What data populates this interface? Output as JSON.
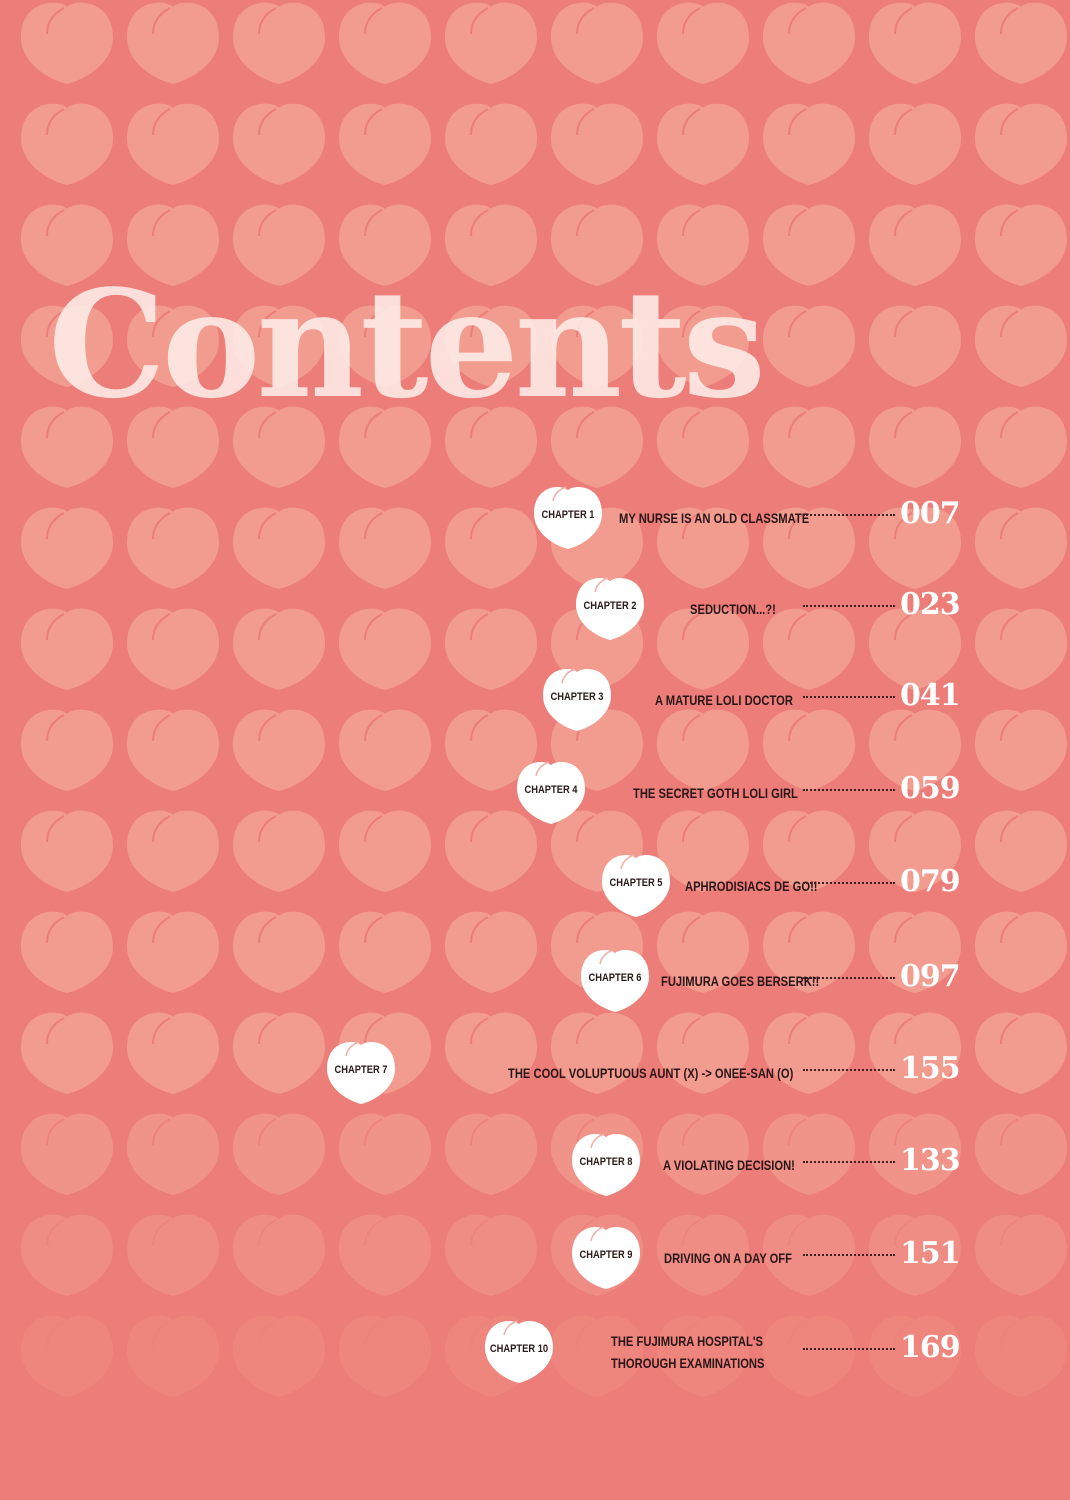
{
  "title": "Contents",
  "colors": {
    "background": "#ec7d78",
    "peach": "#f29b8f",
    "badge": "#ffffff",
    "text": "#2a1518"
  },
  "chapters": [
    {
      "label": "CHAPTER 1",
      "title": "MY NURSE IS AN OLD CLASSMATE",
      "page": "007"
    },
    {
      "label": "CHAPTER 2",
      "title": "SEDUCTION...?!",
      "page": "023"
    },
    {
      "label": "CHAPTER 3",
      "title": "A MATURE LOLI DOCTOR",
      "page": "041"
    },
    {
      "label": "CHAPTER 4",
      "title": "THE SECRET GOTH LOLI GIRL",
      "page": "059"
    },
    {
      "label": "CHAPTER 5",
      "title": "APHRODISIACS DE GO!!",
      "page": "079"
    },
    {
      "label": "CHAPTER 6",
      "title": "FUJIMURA GOES BERSERK!!",
      "page": "097"
    },
    {
      "label": "CHAPTER 7",
      "title": "THE COOL VOLUPTUOUS AUNT (X) -> ONEE-SAN (O)",
      "page": "155"
    },
    {
      "label": "CHAPTER 8",
      "title": "A VIOLATING DECISION!",
      "page": "133"
    },
    {
      "label": "CHAPTER 9",
      "title": "DRIVING ON A DAY OFF",
      "page": "151"
    },
    {
      "label": "CHAPTER 10",
      "title": "THE FUJIMURA HOSPITAL'S\nTHOROUGH EXAMINATIONS",
      "page": "169"
    }
  ]
}
